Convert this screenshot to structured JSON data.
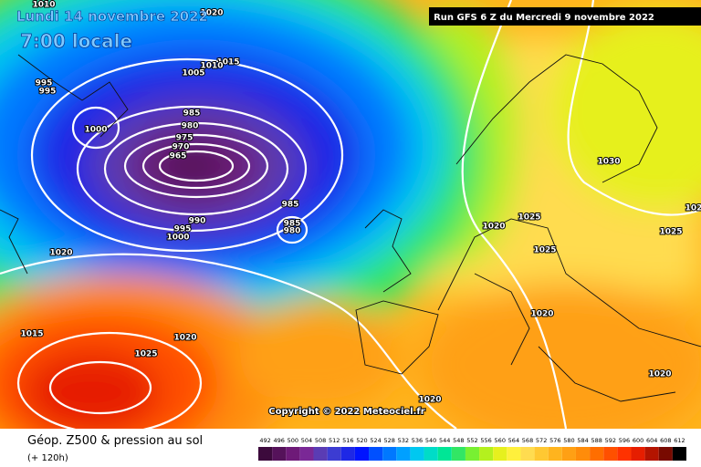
{
  "header": {
    "date": "Lundi 14 novembre 2022",
    "time": "7:00 locale",
    "run": "Run GFS 6 Z du Mercredi 9 novembre 2022"
  },
  "map": {
    "isobar_labels": [
      "1010",
      "1020",
      "1015",
      "1010",
      "1005",
      "995",
      "995",
      "1000",
      "985",
      "980",
      "975",
      "970",
      "965",
      "985",
      "985",
      "980",
      "990",
      "995",
      "1000",
      "1020",
      "1015",
      "1025",
      "1020",
      "1030",
      "1020",
      "1025",
      "1025",
      "1020",
      "1020",
      "1020",
      "1025",
      "102"
    ],
    "copyright": "Copyright © 2022 Meteociel.fr"
  },
  "footer": {
    "title": "Géop. Z500 & pression au sol",
    "lead": "(+ 120h)",
    "scale": [
      492,
      496,
      500,
      504,
      508,
      512,
      516,
      520,
      524,
      528,
      532,
      536,
      540,
      544,
      548,
      552,
      556,
      560,
      564,
      568,
      572,
      576,
      580,
      584,
      588,
      592,
      596,
      600,
      604,
      608,
      612
    ]
  }
}
